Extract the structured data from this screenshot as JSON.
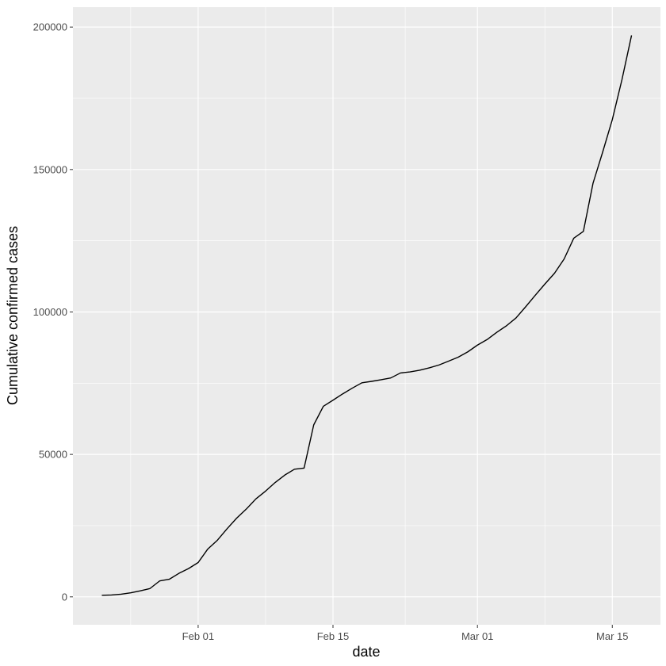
{
  "chart_data": {
    "type": "line",
    "title": "",
    "xlabel": "date",
    "ylabel": "Cumulative confirmed cases",
    "x_tick_labels": [
      "Feb 01",
      "Feb 15",
      "Mar 01",
      "Mar 15"
    ],
    "x_tick_dates": [
      "2020-02-01",
      "2020-02-15",
      "2020-03-01",
      "2020-03-15"
    ],
    "y_tick_labels": [
      "0",
      "50000",
      "100000",
      "150000",
      "200000"
    ],
    "y_tick_values": [
      0,
      50000,
      100000,
      150000,
      200000
    ],
    "xlim": [
      "2020-01-19",
      "2020-03-20"
    ],
    "ylim": [
      -9800,
      207000
    ],
    "grid": true,
    "legend": "none",
    "colors": {
      "panel_background": "#ebebeb",
      "grid_line": "#ffffff",
      "series_line": "#000000",
      "tick_label": "#4d4d4d"
    },
    "series": [
      {
        "points": [
          [
            "2020-01-22",
            555
          ],
          [
            "2020-01-23",
            650
          ],
          [
            "2020-01-24",
            940
          ],
          [
            "2020-01-25",
            1430
          ],
          [
            "2020-01-26",
            2120
          ],
          [
            "2020-01-27",
            2930
          ],
          [
            "2020-01-28",
            5580
          ],
          [
            "2020-01-29",
            6170
          ],
          [
            "2020-01-30",
            8240
          ],
          [
            "2020-01-31",
            9930
          ],
          [
            "2020-02-01",
            12040
          ],
          [
            "2020-02-02",
            16790
          ],
          [
            "2020-02-03",
            19880
          ],
          [
            "2020-02-04",
            23890
          ],
          [
            "2020-02-05",
            27640
          ],
          [
            "2020-02-06",
            30820
          ],
          [
            "2020-02-07",
            34400
          ],
          [
            "2020-02-08",
            37120
          ],
          [
            "2020-02-09",
            40150
          ],
          [
            "2020-02-10",
            42760
          ],
          [
            "2020-02-11",
            44800
          ],
          [
            "2020-02-12",
            45200
          ],
          [
            "2020-02-13",
            60370
          ],
          [
            "2020-02-14",
            66890
          ],
          [
            "2020-02-15",
            69030
          ],
          [
            "2020-02-16",
            71230
          ],
          [
            "2020-02-17",
            73260
          ],
          [
            "2020-02-18",
            75140
          ],
          [
            "2020-02-19",
            75640
          ],
          [
            "2020-02-20",
            76200
          ],
          [
            "2020-02-21",
            76840
          ],
          [
            "2020-02-22",
            78580
          ],
          [
            "2020-02-23",
            78960
          ],
          [
            "2020-02-24",
            79560
          ],
          [
            "2020-02-25",
            80400
          ],
          [
            "2020-02-26",
            81380
          ],
          [
            "2020-02-27",
            82740
          ],
          [
            "2020-02-28",
            84120
          ],
          [
            "2020-02-29",
            86010
          ],
          [
            "2020-03-01",
            88370
          ],
          [
            "2020-03-02",
            90310
          ],
          [
            "2020-03-03",
            92840
          ],
          [
            "2020-03-04",
            95120
          ],
          [
            "2020-03-05",
            97890
          ],
          [
            "2020-03-06",
            101800
          ],
          [
            "2020-03-07",
            105850
          ],
          [
            "2020-03-08",
            109800
          ],
          [
            "2020-03-09",
            113600
          ],
          [
            "2020-03-10",
            118600
          ],
          [
            "2020-03-11",
            125900
          ],
          [
            "2020-03-12",
            128300
          ],
          [
            "2020-03-13",
            145200
          ],
          [
            "2020-03-14",
            156100
          ],
          [
            "2020-03-15",
            167500
          ],
          [
            "2020-03-16",
            181500
          ],
          [
            "2020-03-17",
            197100
          ]
        ]
      }
    ]
  }
}
